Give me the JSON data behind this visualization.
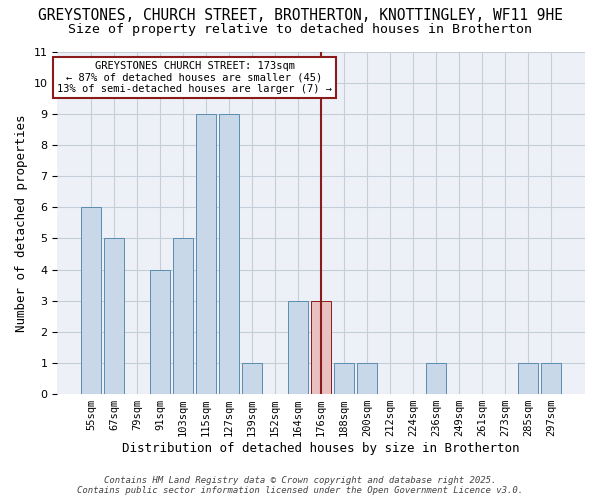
{
  "title_line1": "GREYSTONES, CHURCH STREET, BROTHERTON, KNOTTINGLEY, WF11 9HE",
  "title_line2": "Size of property relative to detached houses in Brotherton",
  "xlabel": "Distribution of detached houses by size in Brotherton",
  "ylabel": "Number of detached properties",
  "categories": [
    "55sqm",
    "67sqm",
    "79sqm",
    "91sqm",
    "103sqm",
    "115sqm",
    "127sqm",
    "139sqm",
    "152sqm",
    "164sqm",
    "176sqm",
    "188sqm",
    "200sqm",
    "212sqm",
    "224sqm",
    "236sqm",
    "249sqm",
    "261sqm",
    "273sqm",
    "285sqm",
    "297sqm"
  ],
  "values": [
    6,
    5,
    0,
    4,
    5,
    9,
    9,
    1,
    0,
    3,
    3,
    1,
    1,
    0,
    0,
    1,
    0,
    0,
    0,
    1,
    1
  ],
  "bar_color_default": "#c8d8e8",
  "bar_edge_color": "#5b8db0",
  "highlight_index": 10,
  "highlight_bar_color": "#e8c0c0",
  "highlight_edge_color": "#8b1a1a",
  "vline_x_index": 10,
  "vline_color": "#8b1a1a",
  "ylim": [
    0,
    11
  ],
  "yticks": [
    0,
    1,
    2,
    3,
    4,
    5,
    6,
    7,
    8,
    9,
    10,
    11
  ],
  "annotation_text": "GREYSTONES CHURCH STREET: 173sqm\n← 87% of detached houses are smaller (45)\n13% of semi-detached houses are larger (7) →",
  "annotation_box_color": "white",
  "annotation_border_color": "#8b1a1a",
  "bg_color": "#edf1f7",
  "grid_color": "#c5cdd8",
  "footer_text": "Contains HM Land Registry data © Crown copyright and database right 2025.\nContains public sector information licensed under the Open Government Licence v3.0.",
  "title_fontsize": 10.5,
  "subtitle_fontsize": 9.5,
  "xlabel_fontsize": 9,
  "ylabel_fontsize": 9,
  "annotation_fontsize": 7.5
}
